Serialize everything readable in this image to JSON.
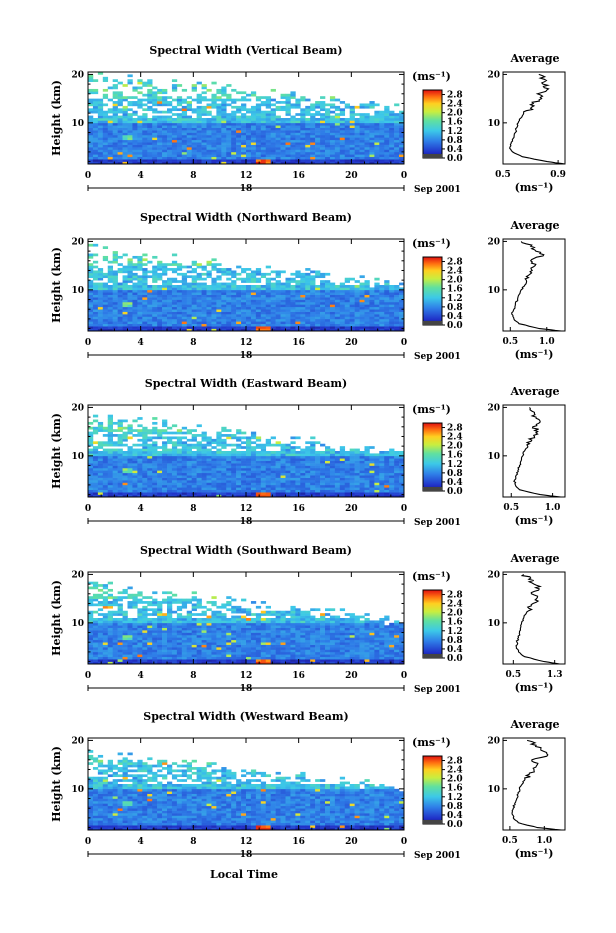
{
  "date_label": "Sep 2001",
  "bottom_xlabel": "Local Time",
  "chart_data": [
    {
      "type": "heatmap",
      "title": "Spectral Width (Vertical Beam)",
      "ylabel": "Height (km)",
      "x_ticks": [
        "0",
        "4",
        "8",
        "12",
        "16",
        "20",
        "0"
      ],
      "y_ticks": [
        "20",
        "10"
      ],
      "day_label": "18",
      "xlim": [
        0,
        24
      ],
      "ylim": [
        1.5,
        20.5
      ],
      "colorbar": {
        "unit": "(ms⁻¹)",
        "ticks": [
          "2.8",
          "2.4",
          "2.0",
          "1.6",
          "1.2",
          "0.8",
          "0.4",
          "0.0"
        ],
        "range": [
          0,
          3.0
        ]
      },
      "average": {
        "title": "Average",
        "x_ticks": [
          "0.5",
          "0.9"
        ],
        "xlabel": "(ms⁻¹)",
        "y_ticks": [
          "20",
          "10"
        ],
        "xlim": [
          0.5,
          0.95
        ],
        "profile": [
          [
            1.5,
            0.95
          ],
          [
            2,
            0.82
          ],
          [
            3,
            0.64
          ],
          [
            4,
            0.57
          ],
          [
            5,
            0.55
          ],
          [
            6,
            0.56
          ],
          [
            7,
            0.58
          ],
          [
            8,
            0.59
          ],
          [
            9,
            0.6
          ],
          [
            10,
            0.61
          ],
          [
            11,
            0.63
          ],
          [
            12,
            0.65
          ],
          [
            13,
            0.7
          ],
          [
            14,
            0.72
          ],
          [
            15,
            0.78
          ],
          [
            16,
            0.75
          ],
          [
            17,
            0.83
          ],
          [
            18,
            0.79
          ],
          [
            19,
            0.8
          ],
          [
            20,
            0.76
          ]
        ]
      }
    },
    {
      "type": "heatmap",
      "title": "Spectral Width (Northward Beam)",
      "ylabel": "Height (km)",
      "x_ticks": [
        "0",
        "4",
        "8",
        "12",
        "16",
        "20",
        "0"
      ],
      "y_ticks": [
        "20",
        "10"
      ],
      "day_label": "18",
      "xlim": [
        0,
        24
      ],
      "ylim": [
        1.5,
        20.5
      ],
      "colorbar": {
        "unit": "(ms⁻¹)",
        "ticks": [
          "2.8",
          "2.4",
          "2.0",
          "1.6",
          "1.2",
          "0.8",
          "0.4",
          "0.0"
        ],
        "range": [
          0,
          3.0
        ]
      },
      "average": {
        "title": "Average",
        "x_ticks": [
          "0.5",
          "1.0"
        ],
        "xlabel": "(ms⁻¹)",
        "y_ticks": [
          "20",
          "10"
        ],
        "xlim": [
          0.4,
          1.25
        ],
        "profile": [
          [
            1.5,
            1.2
          ],
          [
            2,
            0.9
          ],
          [
            3,
            0.62
          ],
          [
            4,
            0.55
          ],
          [
            5,
            0.52
          ],
          [
            6,
            0.55
          ],
          [
            7,
            0.57
          ],
          [
            8,
            0.6
          ],
          [
            9,
            0.62
          ],
          [
            10,
            0.65
          ],
          [
            11,
            0.7
          ],
          [
            12,
            0.72
          ],
          [
            13,
            0.75
          ],
          [
            14,
            0.8
          ],
          [
            15,
            0.84
          ],
          [
            16,
            0.78
          ],
          [
            17,
            0.95
          ],
          [
            18,
            0.85
          ],
          [
            19,
            0.78
          ],
          [
            20,
            0.65
          ]
        ]
      }
    },
    {
      "type": "heatmap",
      "title": "Spectral Width (Eastward Beam)",
      "ylabel": "Height (km)",
      "x_ticks": [
        "0",
        "4",
        "8",
        "12",
        "16",
        "20",
        "0"
      ],
      "y_ticks": [
        "20",
        "10"
      ],
      "day_label": "18",
      "xlim": [
        0,
        24
      ],
      "ylim": [
        1.5,
        20.5
      ],
      "colorbar": {
        "unit": "(ms⁻¹)",
        "ticks": [
          "2.8",
          "2.4",
          "2.0",
          "1.6",
          "1.2",
          "0.8",
          "0.4",
          "0.0"
        ],
        "range": [
          0,
          3.0
        ]
      },
      "average": {
        "title": "Average",
        "x_ticks": [
          "0.5",
          "1.0"
        ],
        "xlabel": "(ms⁻¹)",
        "y_ticks": [
          "20",
          "10"
        ],
        "xlim": [
          0.4,
          1.15
        ],
        "profile": [
          [
            1.5,
            1.1
          ],
          [
            2,
            0.85
          ],
          [
            3,
            0.6
          ],
          [
            4,
            0.55
          ],
          [
            5,
            0.54
          ],
          [
            6,
            0.56
          ],
          [
            7,
            0.58
          ],
          [
            8,
            0.6
          ],
          [
            9,
            0.62
          ],
          [
            10,
            0.64
          ],
          [
            11,
            0.66
          ],
          [
            12,
            0.7
          ],
          [
            13,
            0.74
          ],
          [
            14,
            0.78
          ],
          [
            15,
            0.82
          ],
          [
            16,
            0.76
          ],
          [
            17,
            0.85
          ],
          [
            18,
            0.8
          ],
          [
            19,
            0.78
          ],
          [
            20,
            0.72
          ]
        ]
      }
    },
    {
      "type": "heatmap",
      "title": "Spectral Width (Southward Beam)",
      "ylabel": "Height (km)",
      "x_ticks": [
        "0",
        "4",
        "8",
        "12",
        "16",
        "20",
        "0"
      ],
      "y_ticks": [
        "20",
        "10"
      ],
      "day_label": "18",
      "xlim": [
        0,
        24
      ],
      "ylim": [
        1.5,
        20.5
      ],
      "colorbar": {
        "unit": "(ms⁻¹)",
        "ticks": [
          "2.8",
          "2.4",
          "2.0",
          "1.6",
          "1.2",
          "0.8",
          "0.4",
          "0.0"
        ],
        "range": [
          0,
          3.0
        ]
      },
      "average": {
        "title": "Average",
        "x_ticks": [
          "0.5",
          "1.3"
        ],
        "xlabel": "(ms⁻¹)",
        "y_ticks": [
          "20",
          "10"
        ],
        "xlim": [
          0.3,
          1.5
        ],
        "profile": [
          [
            1.5,
            1.4
          ],
          [
            2,
            1.1
          ],
          [
            3,
            0.72
          ],
          [
            4,
            0.6
          ],
          [
            5,
            0.56
          ],
          [
            6,
            0.57
          ],
          [
            7,
            0.6
          ],
          [
            8,
            0.62
          ],
          [
            9,
            0.64
          ],
          [
            10,
            0.66
          ],
          [
            11,
            0.7
          ],
          [
            12,
            0.75
          ],
          [
            13,
            0.8
          ],
          [
            14,
            0.88
          ],
          [
            15,
            0.95
          ],
          [
            16,
            0.85
          ],
          [
            17,
            1.0
          ],
          [
            18,
            0.9
          ],
          [
            19,
            0.8
          ],
          [
            20,
            0.7
          ]
        ]
      }
    },
    {
      "type": "heatmap",
      "title": "Spectral Width (Westward Beam)",
      "ylabel": "Height (km)",
      "x_ticks": [
        "0",
        "4",
        "8",
        "12",
        "16",
        "20",
        "0"
      ],
      "y_ticks": [
        "20",
        "10"
      ],
      "day_label": "18",
      "xlim": [
        0,
        24
      ],
      "ylim": [
        1.5,
        20.5
      ],
      "colorbar": {
        "unit": "(ms⁻¹)",
        "ticks": [
          "2.8",
          "2.4",
          "2.0",
          "1.6",
          "1.2",
          "0.8",
          "0.4",
          "0.0"
        ],
        "range": [
          0,
          3.0
        ]
      },
      "average": {
        "title": "Average",
        "x_ticks": [
          "0.5",
          "1.0"
        ],
        "xlabel": "(ms⁻¹)",
        "y_ticks": [
          "20",
          "10"
        ],
        "xlim": [
          0.4,
          1.3
        ],
        "profile": [
          [
            1.5,
            1.25
          ],
          [
            2,
            0.9
          ],
          [
            3,
            0.62
          ],
          [
            4,
            0.55
          ],
          [
            5,
            0.53
          ],
          [
            6,
            0.55
          ],
          [
            7,
            0.57
          ],
          [
            8,
            0.6
          ],
          [
            9,
            0.62
          ],
          [
            10,
            0.64
          ],
          [
            11,
            0.68
          ],
          [
            12,
            0.72
          ],
          [
            13,
            0.78
          ],
          [
            14,
            0.85
          ],
          [
            15,
            0.9
          ],
          [
            16,
            0.82
          ],
          [
            17,
            1.05
          ],
          [
            18,
            0.95
          ],
          [
            19,
            0.88
          ],
          [
            20,
            0.75
          ]
        ]
      }
    }
  ]
}
